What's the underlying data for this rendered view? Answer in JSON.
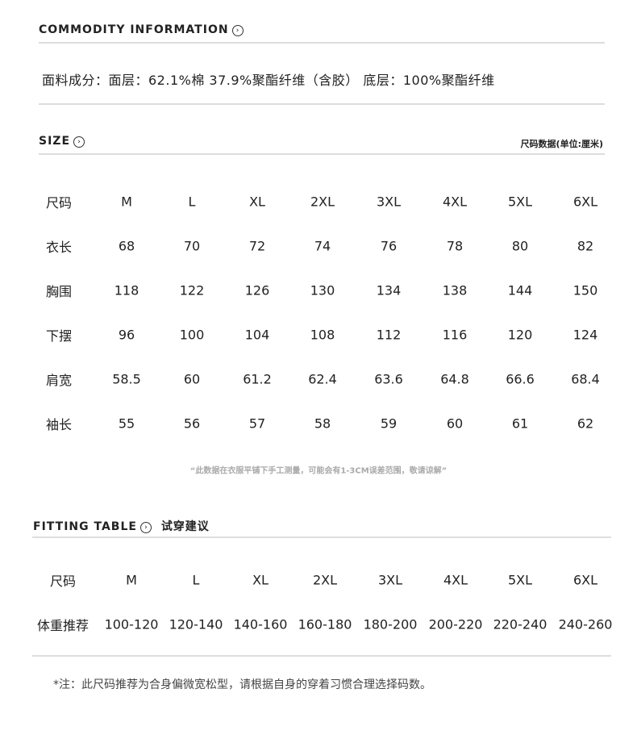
{
  "commodity": {
    "title": "COMMODITY INFORMATION",
    "fabric": "面料成分：面层：62.1%棉  37.9%聚酯纤维（含胶）  底层：100%聚酯纤维"
  },
  "size": {
    "title": "SIZE",
    "unit": "尺码数据(单位:厘米)",
    "rows": [
      [
        "尺码",
        "M",
        "L",
        "XL",
        "2XL",
        "3XL",
        "4XL",
        "5XL",
        "6XL"
      ],
      [
        "衣长",
        "68",
        "70",
        "72",
        "74",
        "76",
        "78",
        "80",
        "82"
      ],
      [
        "胸围",
        "118",
        "122",
        "126",
        "130",
        "134",
        "138",
        "144",
        "150"
      ],
      [
        "下摆",
        "96",
        "100",
        "104",
        "108",
        "112",
        "116",
        "120",
        "124"
      ],
      [
        "肩宽",
        "58.5",
        "60",
        "61.2",
        "62.4",
        "63.6",
        "64.8",
        "66.6",
        "68.4"
      ],
      [
        "袖长",
        "55",
        "56",
        "57",
        "58",
        "59",
        "60",
        "61",
        "62"
      ]
    ],
    "note": "“此数据在衣服平铺下手工测量，可能会有1-3CM误差范围，敬请谅解”"
  },
  "fitting": {
    "title": "FITTING TABLE",
    "subtitle": "试穿建议",
    "rows": [
      [
        "尺码",
        "M",
        "L",
        "XL",
        "2XL",
        "3XL",
        "4XL",
        "5XL",
        "6XL"
      ],
      [
        "体重推荐",
        "100-120",
        "120-140",
        "140-160",
        "160-180",
        "180-200",
        "200-220",
        "220-240",
        "240-260"
      ]
    ],
    "footnote": "*注：此尺码推荐为合身偏微宽松型，请根据自身的穿着习惯合理选择码数。"
  },
  "icons": {
    "section": "chevron-right-circle-icon"
  }
}
